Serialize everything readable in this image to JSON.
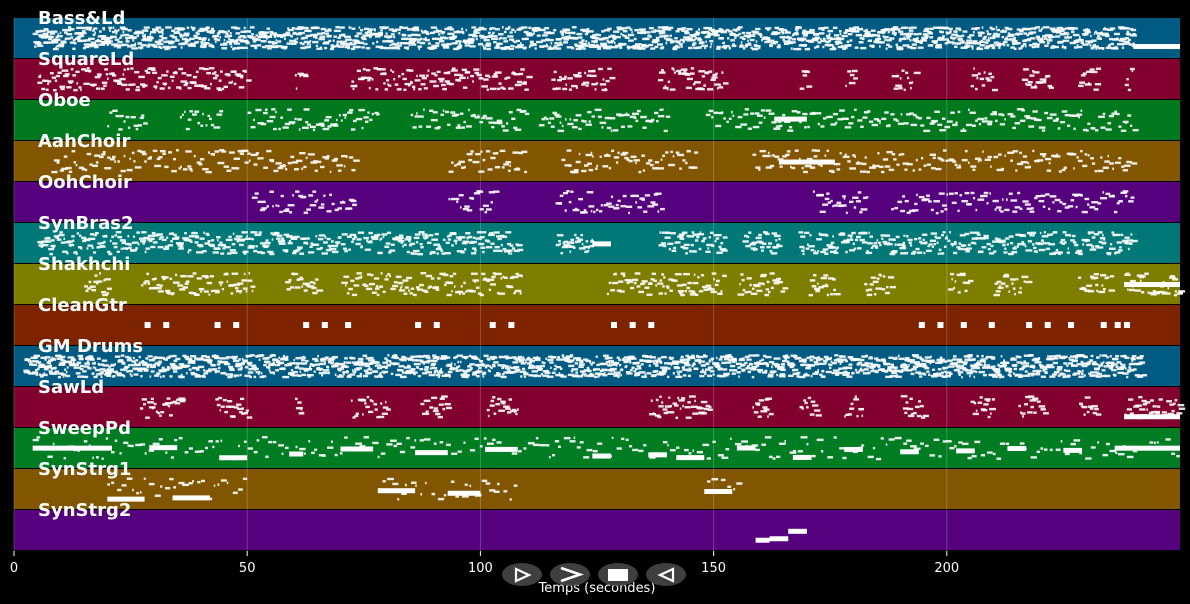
{
  "chart_data": {
    "type": "piano-roll",
    "xlabel": "Temps (secondes)",
    "xlim": [
      0,
      250
    ],
    "xticks": [
      0,
      50,
      100,
      150,
      200
    ],
    "grid": true,
    "tracks": [
      {
        "name": "Bass&Ld",
        "color": "#005a82",
        "density": 7,
        "span": [
          4,
          240
        ],
        "gaps": [],
        "long_notes": [
          [
            240,
            250
          ]
        ]
      },
      {
        "name": "SquareLd",
        "color": "#82002e",
        "density": 3,
        "span": [
          5,
          240
        ],
        "gaps": [
          [
            50,
            60
          ],
          [
            62,
            72
          ],
          [
            110,
            115
          ],
          [
            128,
            138
          ],
          [
            152,
            168
          ],
          [
            170,
            178
          ],
          [
            180,
            188
          ],
          [
            193,
            205
          ],
          [
            210,
            216
          ],
          [
            222,
            228
          ],
          [
            232,
            238
          ]
        ],
        "long_notes": []
      },
      {
        "name": "Oboe",
        "color": "#00781e",
        "density": 2,
        "span": [
          20,
          240
        ],
        "gaps": [
          [
            28,
            35
          ],
          [
            44,
            50
          ],
          [
            78,
            85
          ],
          [
            110,
            112
          ],
          [
            140,
            148
          ]
        ],
        "long_notes": [
          [
            163,
            170
          ]
        ]
      },
      {
        "name": "AahChoir",
        "color": "#825500",
        "density": 2,
        "span": [
          8,
          240
        ],
        "gaps": [
          [
            73,
            93
          ],
          [
            110,
            117
          ],
          [
            146,
            158
          ]
        ],
        "long_notes": [
          [
            164,
            176
          ]
        ]
      },
      {
        "name": "OohChoir",
        "color": "#55007d",
        "density": 2,
        "span": [
          51,
          240
        ],
        "gaps": [
          [
            73,
            93
          ],
          [
            103,
            116
          ],
          [
            139,
            171
          ],
          [
            183,
            188
          ]
        ],
        "long_notes": []
      },
      {
        "name": "SynBras2",
        "color": "#007878",
        "density": 4,
        "span": [
          5,
          240
        ],
        "gaps": [
          [
            108,
            116
          ],
          [
            124,
            138
          ],
          [
            152,
            156
          ],
          [
            164,
            168
          ]
        ],
        "long_notes": [
          [
            124,
            128
          ]
        ]
      },
      {
        "name": "Shakhchi",
        "color": "#7d7d00",
        "density": 3,
        "span": [
          15,
          250
        ],
        "gaps": [
          [
            20,
            27
          ],
          [
            51,
            58
          ],
          [
            65,
            70
          ],
          [
            109,
            127
          ],
          [
            152,
            155
          ],
          [
            165,
            170
          ],
          [
            176,
            182
          ],
          [
            188,
            200
          ],
          [
            205,
            210
          ],
          [
            217,
            228
          ],
          [
            235,
            238
          ]
        ],
        "long_notes": [
          [
            238,
            250
          ]
        ]
      },
      {
        "name": "CleanGtr",
        "color": "#7d2300",
        "density": 0,
        "span": [
          28,
          240
        ],
        "gaps": [],
        "long_notes": [],
        "hits": [
          28,
          32,
          43,
          47,
          62,
          66,
          71,
          86,
          90,
          102,
          106,
          128,
          132,
          136,
          194,
          198,
          203,
          209,
          217,
          221,
          226,
          233,
          236,
          238
        ]
      },
      {
        "name": "GM Drums",
        "color": "#005a82",
        "density": 7,
        "span": [
          2,
          242
        ],
        "gaps": [],
        "long_notes": []
      },
      {
        "name": "SawLd",
        "color": "#82002e",
        "density": 3,
        "span": [
          27,
          250
        ],
        "gaps": [
          [
            36,
            43
          ],
          [
            50,
            60
          ],
          [
            62,
            72
          ],
          [
            80,
            87
          ],
          [
            93,
            101
          ],
          [
            108,
            136
          ],
          [
            149,
            158
          ],
          [
            162,
            168
          ],
          [
            172,
            178
          ],
          [
            182,
            190
          ],
          [
            195,
            205
          ],
          [
            210,
            215
          ],
          [
            221,
            228
          ],
          [
            232,
            238
          ]
        ],
        "long_notes": [
          [
            238,
            250
          ]
        ]
      },
      {
        "name": "SweepPd",
        "color": "#007d23",
        "density": 1,
        "span": [
          4,
          250
        ],
        "gaps": [],
        "long_notes": [
          [
            4,
            21
          ],
          [
            29,
            35
          ],
          [
            44,
            50
          ],
          [
            59,
            62
          ],
          [
            70,
            77
          ],
          [
            86,
            93
          ],
          [
            101,
            108
          ],
          [
            124,
            128
          ],
          [
            136,
            140
          ],
          [
            142,
            148
          ],
          [
            155,
            159
          ],
          [
            167,
            171
          ],
          [
            178,
            182
          ],
          [
            190,
            194
          ],
          [
            202,
            206
          ],
          [
            213,
            217
          ],
          [
            225,
            229
          ],
          [
            236,
            250
          ]
        ]
      },
      {
        "name": "SynStrg1",
        "color": "#825500",
        "density": 1,
        "span": [
          20,
          155
        ],
        "gaps": [
          [
            50,
            78
          ],
          [
            108,
            148
          ]
        ],
        "long_notes": [
          [
            20,
            28
          ],
          [
            34,
            42
          ],
          [
            78,
            86
          ],
          [
            93,
            100
          ],
          [
            148,
            154
          ]
        ]
      },
      {
        "name": "SynStrg2",
        "color": "#55007d",
        "density": 0,
        "span": [
          159,
          170
        ],
        "gaps": [],
        "long_notes": [
          [
            159,
            162
          ],
          [
            162,
            166
          ],
          [
            166,
            170
          ]
        ]
      }
    ]
  },
  "controls": {
    "buttons": [
      {
        "name": "play-forward-button",
        "icon": "play-outline-icon"
      },
      {
        "name": "fast-forward-button",
        "icon": "chevron-right-icon"
      },
      {
        "name": "stop-button",
        "icon": "stop-square-icon"
      },
      {
        "name": "rewind-button",
        "icon": "play-back-outline-icon"
      }
    ]
  }
}
